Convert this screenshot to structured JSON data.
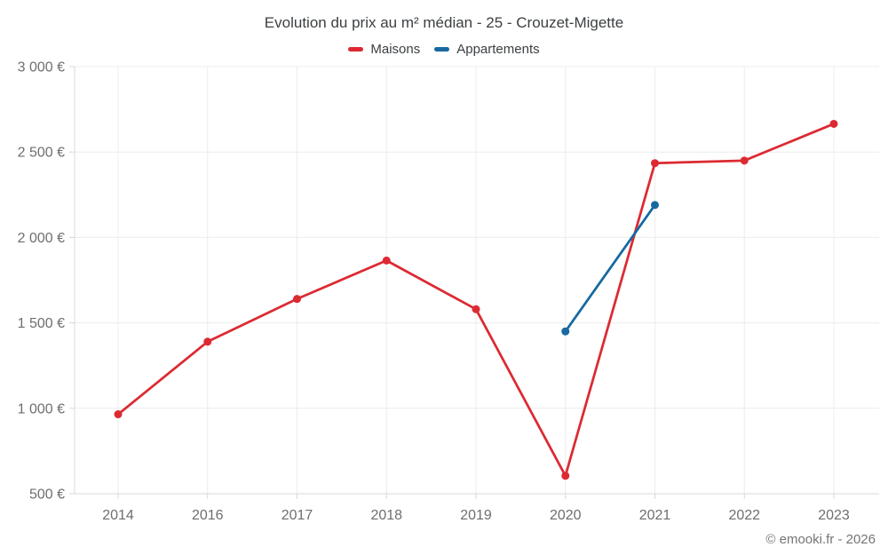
{
  "page": {
    "title": "Evolution du prix au m² médian - 25 - Crouzet-Migette",
    "footer_credit": "© emooki.fr - 2026"
  },
  "legend": {
    "items": [
      {
        "label": "Maisons",
        "color": "#dc2a32"
      },
      {
        "label": "Appartements",
        "color": "#1769a0"
      }
    ]
  },
  "chart_data": {
    "type": "line",
    "title": "Evolution du prix au m² médian - 25 - Crouzet-Migette",
    "categories": [
      "2014",
      "2016",
      "2017",
      "2018",
      "2019",
      "2020",
      "2021",
      "2022",
      "2023"
    ],
    "series": [
      {
        "name": "Maisons",
        "color": "#dc2a32",
        "values": [
          965,
          1390,
          1640,
          1865,
          1580,
          605,
          2435,
          2450,
          2665
        ]
      },
      {
        "name": "Appartements",
        "color": "#1769a0",
        "values": [
          null,
          null,
          null,
          null,
          null,
          1450,
          2190,
          null,
          null
        ]
      }
    ],
    "y_ticks": [
      {
        "value": 3000,
        "label": "3 000 €"
      },
      {
        "value": 2500,
        "label": "2 500 €"
      },
      {
        "value": 2000,
        "label": "2 000 €"
      },
      {
        "value": 1500,
        "label": "1 500 €"
      },
      {
        "value": 1000,
        "label": "1 000 €"
      },
      {
        "value": 500,
        "label": "500 €"
      }
    ],
    "ylim": [
      500,
      3000
    ],
    "xlabel": "",
    "ylabel": "",
    "currency": "€",
    "grid": true,
    "legend_position": "top"
  },
  "colors": {
    "maisons": "#dc2a32",
    "appartements": "#1769a0",
    "grid": "#ececec",
    "axis": "#d8d8d8",
    "tick_text": "#6e6e6e",
    "title_text": "#3c4043",
    "footer_text": "#757575"
  }
}
